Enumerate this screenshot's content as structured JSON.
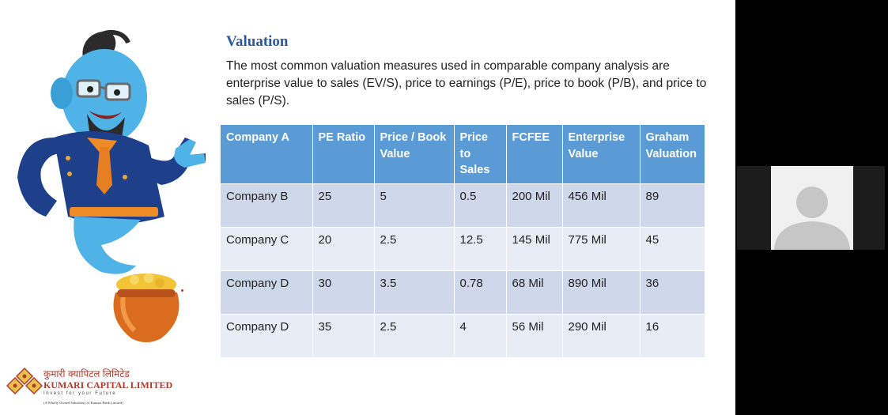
{
  "slide": {
    "title": "Valuation",
    "intro": "The most common valuation measures used in comparable company analysis are enterprise value to sales (EV/S), price to earnings (P/E), price to book (P/B), and price to sales (P/S).",
    "table": {
      "headers": [
        "Company A",
        "PE Ratio",
        "Price / Book Value",
        "Price to Sales",
        "FCFEE",
        "Enterprise Value",
        "Graham Valuation"
      ],
      "rows": [
        [
          "Company B",
          "25",
          "5",
          "0.5",
          "200 Mil",
          "456 Mil",
          "89"
        ],
        [
          "Company C",
          "20",
          "2.5",
          "12.5",
          "145 Mil",
          "775 Mil",
          "45"
        ],
        [
          "Company D",
          "30",
          "3.5",
          "0.78",
          "68 Mil",
          "890 Mil",
          "36"
        ],
        [
          "Company D",
          "35",
          "2.5",
          "4",
          "56 Mil",
          "290 Mil",
          "16"
        ]
      ]
    },
    "logo": {
      "nepali": "कुमारी क्यापिटल लिमिटेड",
      "name": "KUMARI CAPITAL LIMITED",
      "tagline": "Invest for your Future",
      "subtitle": "(A Wholly Owned Subsidiary of Kumari Bank Limited)"
    }
  },
  "colors": {
    "title": "#2a5a9a",
    "header_bg": "#5b9bd5",
    "row_dark": "#cfd8ea",
    "row_light": "#e8ecf5",
    "logo_red": "#b23a2e",
    "logo_gold": "#e8c24a"
  },
  "icons": {
    "mascot": "genie-mascot",
    "pot": "gold-coin-pot",
    "participant": "person-avatar-icon"
  }
}
